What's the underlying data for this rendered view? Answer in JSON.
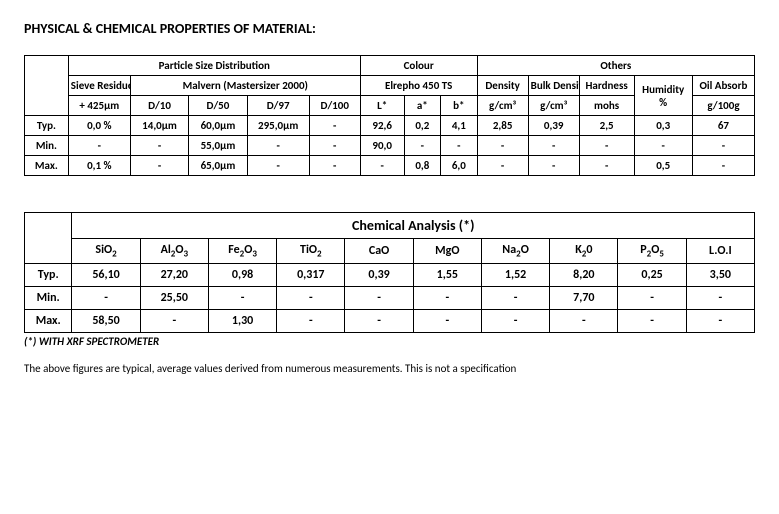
{
  "title": "PHYSICAL & CHEMICAL PROPERTIES OF MATERIAL:",
  "phys": {
    "group_headers": {
      "psd": "Particle Size Distribution",
      "colour": "Colour",
      "others": "Others"
    },
    "sub_headers": {
      "sieve": "Sieve Residue",
      "malvern": "Malvern (Mastersizer 2000)",
      "elrepho": "Elrepho 450 TS",
      "density": "Density",
      "bulk_density": "Bulk Density",
      "hardness": "Hardness",
      "humidity": "Humidity",
      "oil": "Oil Absorb"
    },
    "unit_headers": {
      "sieve": "+ 425μm",
      "d10": "D/10",
      "d50": "D/50",
      "d97": "D/97",
      "d100": "D/100",
      "L": "L*",
      "a": "a*",
      "b": "b*",
      "density": "g/cm³",
      "bulk": "g/cm³",
      "hardness": "mohs",
      "humidity": "%",
      "oil": "g/100g"
    },
    "row_labels": {
      "typ": "Typ.",
      "min": "Min.",
      "max": "Max."
    },
    "typ": {
      "sieve": "0,0 %",
      "d10": "14,0μm",
      "d50": "60,0μm",
      "d97": "295,0μm",
      "d100": "-",
      "L": "92,6",
      "a": "0,2",
      "b": "4,1",
      "density": "2,85",
      "bulk": "0,39",
      "hardness": "2,5",
      "humidity": "0,3",
      "oil": "67"
    },
    "min": {
      "sieve": "-",
      "d10": "-",
      "d50": "55,0μm",
      "d97": "-",
      "d100": "-",
      "L": "90,0",
      "a": "-",
      "b": "-",
      "density": "-",
      "bulk": "-",
      "hardness": "-",
      "humidity": "-",
      "oil": "-"
    },
    "max": {
      "sieve": "0,1 %",
      "d10": "-",
      "d50": "65,0μm",
      "d97": "-",
      "d100": "-",
      "L": "-",
      "a": "0,8",
      "b": "6,0",
      "density": "-",
      "bulk": "-",
      "hardness": "-",
      "humidity": "0,5",
      "oil": "-"
    }
  },
  "chem": {
    "title": "Chemical Analysis (*)",
    "cols_html": [
      "SiO<sub>2</sub>",
      "Al<sub>2</sub>O<sub>3</sub>",
      "Fe<sub>2</sub>O<sub>3</sub>",
      "TiO<sub>2</sub>",
      "CaO",
      "MgO",
      "Na<sub>2</sub>O",
      "K<sub>2</sub>0",
      "P<sub>2</sub>O<sub>5</sub>",
      "L.O.I"
    ],
    "row_labels": {
      "typ": "Typ.",
      "min": "Min.",
      "max": "Max."
    },
    "typ": [
      "56,10",
      "27,20",
      "0,98",
      "0,317",
      "0,39",
      "1,55",
      "1,52",
      "8,20",
      "0,25",
      "3,50"
    ],
    "min": [
      "-",
      "25,50",
      "-",
      "-",
      "-",
      "-",
      "-",
      "7,70",
      "-",
      "-"
    ],
    "max": [
      "58,50",
      "-",
      "1,30",
      "-",
      "-",
      "-",
      "-",
      "-",
      "-",
      "-"
    ]
  },
  "footnote_star": "(*) WITH XRF SPECTROMETER",
  "footnote_desc": "The above figures are typical, average values derived from numerous measurements. This is not a specification"
}
